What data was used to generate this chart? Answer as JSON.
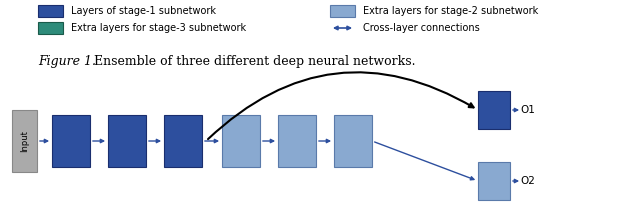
{
  "fig_width": 6.24,
  "fig_height": 2.22,
  "dpi": 100,
  "dark_blue_color": "#2d4f9e",
  "light_blue_color": "#89a9d0",
  "teal_color": "#2e8b7a",
  "arrow_color": "#2d4f9e",
  "gray_color": "#aaaaaa",
  "legend": {
    "box1_color": "#2d4f9e",
    "box1_label": "Layers of stage-1 subnetwork",
    "box2_color": "#2e8b7a",
    "box2_label": "Extra layers for stage-3 subnetwork",
    "box3_color": "#89a9d0",
    "box3_label": "Extra layers for stage-2 subnetwork",
    "arrow_label": "Cross-layer connections"
  },
  "caption_italic": "Figure 1.",
  "caption_normal": " Ensemble of three different deep neural networks."
}
